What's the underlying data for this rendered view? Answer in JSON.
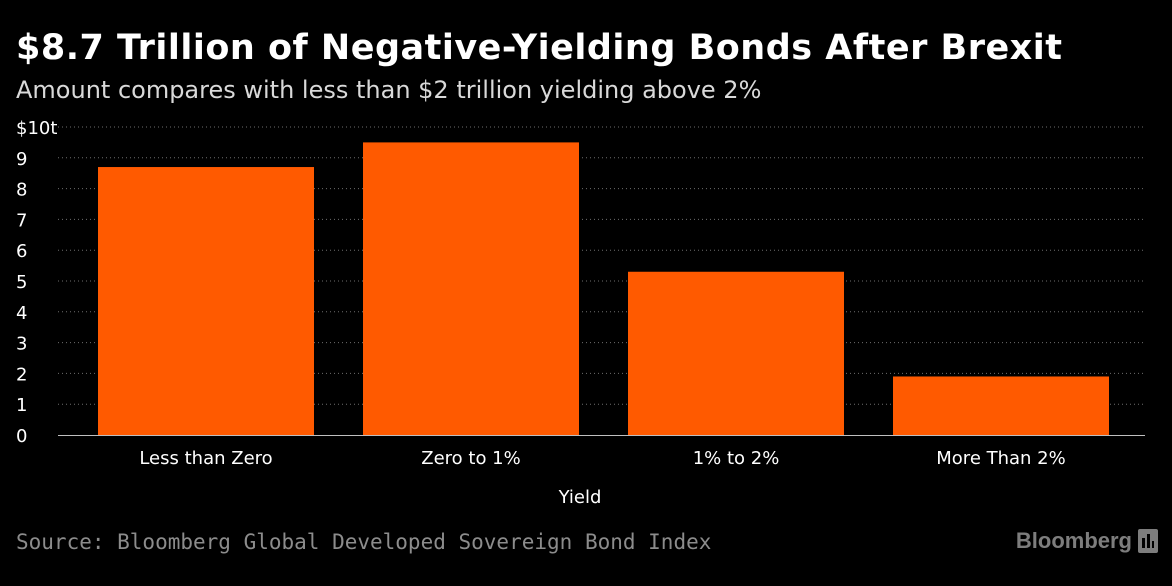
{
  "header": {
    "title": "$8.7 Trillion of Negative-Yielding Bonds After Brexit",
    "subtitle": "Amount compares with less than $2 trillion yielding above 2%"
  },
  "footer": {
    "source": "Source: Bloomberg Global Developed Sovereign Bond Index",
    "brand": "Bloomberg"
  },
  "colors": {
    "background": "#000000",
    "bar": "#ff5a00",
    "grid": "#6e6e6e",
    "text": "#ffffff"
  },
  "chart_data": {
    "type": "bar",
    "title": "$8.7 Trillion of Negative-Yielding Bonds After Brexit",
    "subtitle": "Amount compares with less than $2 trillion yielding above 2%",
    "xlabel": "Yield",
    "ylabel": "",
    "categories": [
      "Less than Zero",
      "Zero to 1%",
      "1% to 2%",
      "More Than 2%"
    ],
    "values": [
      8.7,
      9.5,
      5.3,
      1.9
    ],
    "ylim": [
      0,
      10
    ],
    "yticks": [
      0,
      1,
      2,
      3,
      4,
      5,
      6,
      7,
      8,
      9,
      10
    ],
    "ytick_labels": [
      "0",
      "1",
      "2",
      "3",
      "4",
      "5",
      "6",
      "7",
      "8",
      "9",
      "$10t"
    ],
    "grid": true,
    "legend": "none"
  }
}
